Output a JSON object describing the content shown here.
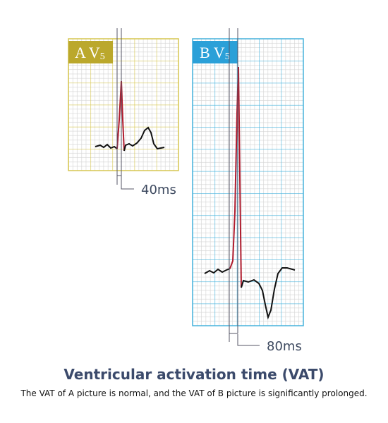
{
  "panels": [
    {
      "letter": "A",
      "lead": "V",
      "lead_number": "5",
      "interval": "40ms"
    },
    {
      "letter": "B",
      "lead": "V",
      "lead_number": "5",
      "interval": "80ms"
    }
  ],
  "title": "Ventricular activation time (VAT)",
  "caption": "The VAT of A picture is normal, and the VAT of B picture is significantly prolonged."
}
